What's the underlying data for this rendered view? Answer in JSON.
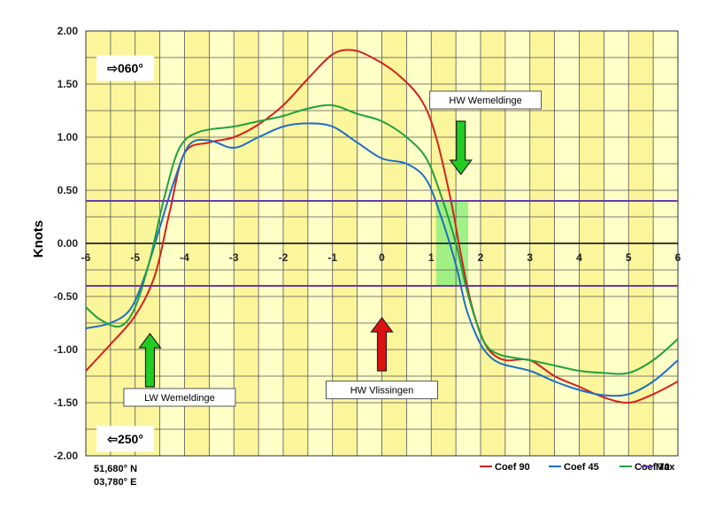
{
  "chart_data": {
    "type": "line",
    "ylabel": "Knots",
    "xlim": [
      -6,
      6
    ],
    "ylim": [
      -2,
      2
    ],
    "x_ticks": [
      "-6",
      "-5",
      "-4",
      "-3",
      "-2",
      "-1",
      "0",
      "1",
      "2",
      "3",
      "4",
      "5",
      "6"
    ],
    "y_ticks": [
      "2.00",
      "1.50",
      "1.00",
      "0.50",
      "0.00",
      "-0.50",
      "-1.00",
      "-1.50",
      "-2.00"
    ],
    "grid": true,
    "legend_position": "bottom-right",
    "series": [
      {
        "name": "Coef 90",
        "color": "#d62020",
        "x": [
          -6,
          -5.5,
          -5,
          -4.6,
          -4.3,
          -4,
          -3.5,
          -3,
          -2.5,
          -2,
          -1.5,
          -1,
          -0.6,
          -0.2,
          0.3,
          0.8,
          1.1,
          1.4,
          1.6,
          1.8,
          2,
          2.2,
          2.5,
          3,
          3.5,
          4,
          4.5,
          5,
          5.5,
          6
        ],
        "y": [
          -1.2,
          -0.95,
          -0.68,
          -0.3,
          0.3,
          0.85,
          0.95,
          1.0,
          1.12,
          1.3,
          1.55,
          1.78,
          1.82,
          1.75,
          1.6,
          1.35,
          1.0,
          0.4,
          -0.1,
          -0.55,
          -0.85,
          -1.02,
          -1.1,
          -1.1,
          -1.25,
          -1.35,
          -1.45,
          -1.5,
          -1.42,
          -1.3
        ]
      },
      {
        "name": "Coef 45",
        "color": "#1e6fc4",
        "x": [
          -6,
          -5.5,
          -5.1,
          -4.8,
          -4.5,
          -4.2,
          -3.9,
          -3.5,
          -3,
          -2.5,
          -2,
          -1.5,
          -1,
          -0.5,
          0,
          0.5,
          0.9,
          1.2,
          1.5,
          1.7,
          1.9,
          2.1,
          2.4,
          3,
          3.5,
          4,
          4.5,
          5,
          5.5,
          6
        ],
        "y": [
          -0.8,
          -0.75,
          -0.62,
          -0.3,
          0.15,
          0.6,
          0.93,
          0.97,
          0.9,
          1.0,
          1.1,
          1.13,
          1.1,
          0.95,
          0.8,
          0.75,
          0.6,
          0.25,
          -0.2,
          -0.6,
          -0.85,
          -1.02,
          -1.13,
          -1.2,
          -1.3,
          -1.38,
          -1.43,
          -1.42,
          -1.3,
          -1.1
        ]
      },
      {
        "name": "Coef 70",
        "color": "#20a040",
        "x": [
          -6,
          -5.7,
          -5.3,
          -5,
          -4.7,
          -4.4,
          -4.1,
          -3.7,
          -3,
          -2.5,
          -2,
          -1.5,
          -1,
          -0.5,
          0,
          0.5,
          0.9,
          1.2,
          1.5,
          1.7,
          1.9,
          2.1,
          2.4,
          3,
          3.5,
          4,
          4.5,
          5,
          5.5,
          6
        ],
        "y": [
          -0.6,
          -0.72,
          -0.78,
          -0.6,
          -0.15,
          0.45,
          0.9,
          1.05,
          1.1,
          1.15,
          1.2,
          1.27,
          1.3,
          1.22,
          1.15,
          1.0,
          0.8,
          0.45,
          0.0,
          -0.4,
          -0.72,
          -0.95,
          -1.05,
          -1.1,
          -1.15,
          -1.2,
          -1.22,
          -1.22,
          -1.1,
          -0.9
        ]
      },
      {
        "name": "Max",
        "color": "#6a3aa8",
        "x": [
          -6,
          6
        ],
        "y": [
          0.4,
          0.4
        ]
      },
      {
        "name": "Max",
        "color": "#6a3aa8",
        "x": [
          -6,
          6
        ],
        "y": [
          -0.4,
          -0.4
        ]
      }
    ],
    "shaded_hour_columns_x": [
      -4,
      -3,
      -2,
      -1,
      0,
      1,
      2,
      3,
      4,
      5
    ],
    "shaded_left_band": [
      -6,
      -4.5
    ],
    "slack_window": {
      "x": [
        1.1,
        1.75
      ],
      "y": [
        -0.4,
        0.4
      ],
      "color": "#90ee80"
    },
    "annotations": [
      {
        "label": "⇨060°",
        "x": -5.2,
        "y": 1.65,
        "type": "direction"
      },
      {
        "label": "⇦250°",
        "x": -5.2,
        "y": -1.84,
        "type": "direction"
      },
      {
        "label": "HW Wemeldinge",
        "x": 2.1,
        "y": 1.35,
        "type": "box"
      },
      {
        "label": "LW Wemeldinge",
        "x": -4.1,
        "y": -1.45,
        "type": "box"
      },
      {
        "label": "HW Vlissingen",
        "x": 0.0,
        "y": -1.38,
        "type": "box"
      }
    ],
    "arrows": [
      {
        "x": 1.6,
        "y_from": 1.15,
        "y_to": 0.65,
        "color": "#22cc22"
      },
      {
        "x": -4.7,
        "y_from": -1.35,
        "y_to": -0.85,
        "color": "#22cc22"
      },
      {
        "x": 0.0,
        "y_from": -1.2,
        "y_to": -0.7,
        "color": "#dd1111"
      }
    ],
    "location": [
      "51,680° N",
      "03,780° E"
    ]
  }
}
